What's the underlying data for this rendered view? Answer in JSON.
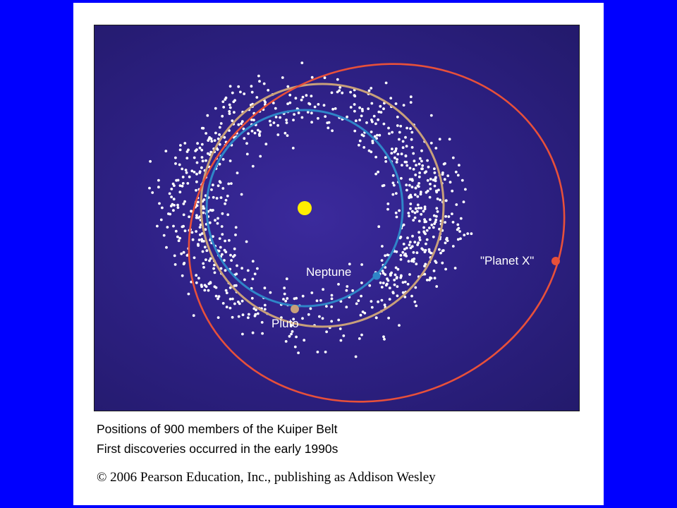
{
  "colors": {
    "slide_border": "#0000ff",
    "panel": "#2f2187",
    "sun": "#ffee00",
    "neptune_orbit": "#2f86c8",
    "pluto_orbit": "#c8a07a",
    "planet_x_orbit": "#e8503a",
    "kuiper_dots": "#ffffff"
  },
  "diagram": {
    "labels": {
      "neptune": "Neptune",
      "pluto": "Pluto",
      "planet_x": "\"Planet X\""
    },
    "kuiper_belt_count": 900
  },
  "captions": {
    "line1": "Positions of 900 members of the Kuiper Belt",
    "line2": "First discoveries occurred in the early 1990s"
  },
  "copyright": "© 2006 Pearson Education, Inc., publishing as Addison Wesley"
}
